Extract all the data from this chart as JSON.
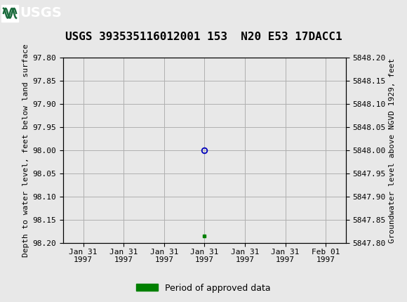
{
  "title": "USGS 393535116012001 153  N20 E53 17DACC1",
  "ylabel_left": "Depth to water level, feet below land surface",
  "ylabel_right": "Groundwater level above NGVD 1929, feet",
  "ylim_left": [
    97.8,
    98.2
  ],
  "ylim_right": [
    5847.8,
    5848.2
  ],
  "yticks_left": [
    97.8,
    97.85,
    97.9,
    97.95,
    98.0,
    98.05,
    98.1,
    98.15,
    98.2
  ],
  "yticks_right": [
    5847.8,
    5847.85,
    5847.9,
    5847.95,
    5848.0,
    5848.05,
    5848.1,
    5848.15,
    5848.2
  ],
  "data_point_value": 98.0,
  "data_point_color": "#0000bb",
  "approved_marker_value": 98.185,
  "approved_marker_color": "#008000",
  "legend_label": "Period of approved data",
  "header_color": "#1a6b3c",
  "header_text_color": "#ffffff",
  "background_color": "#e8e8e8",
  "plot_background": "#e8e8e8",
  "grid_color": "#b0b0b0",
  "title_fontsize": 11.5,
  "axis_label_fontsize": 8,
  "tick_fontsize": 8,
  "legend_fontsize": 9
}
